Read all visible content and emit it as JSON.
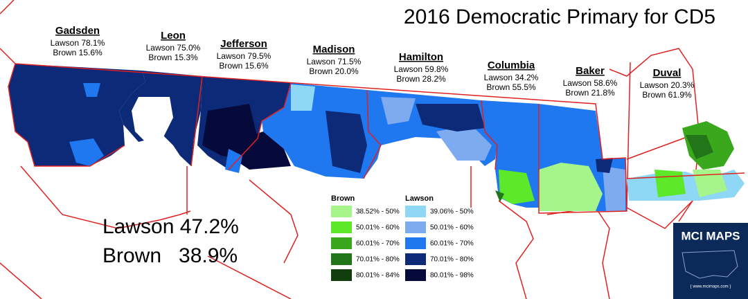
{
  "title": "2016 Democratic Primary for CD5",
  "counties": [
    {
      "name": "Gadsden",
      "lines": [
        "Lawson 78.1%",
        "Brown 15.6%"
      ]
    },
    {
      "name": "Leon",
      "lines": [
        "Lawson 75.0%",
        "Brown 15.3%"
      ]
    },
    {
      "name": "Jefferson",
      "lines": [
        "Lawson 79.5%",
        "Brown 15.6%"
      ]
    },
    {
      "name": "Madison",
      "lines": [
        "Lawson 71.5%",
        "Brown 20.0%"
      ]
    },
    {
      "name": "Hamilton",
      "lines": [
        "Lawson 59.8%",
        "Brown 28.2%"
      ]
    },
    {
      "name": "Columbia",
      "lines": [
        "Lawson 34.2%",
        "Brown 55.5%"
      ]
    },
    {
      "name": "Baker",
      "lines": [
        "Lawson 58.6%",
        "Brown 21.8%"
      ]
    },
    {
      "name": "Duval",
      "lines": [
        "Lawson 20.3%",
        "Brown 61.9%"
      ]
    }
  ],
  "legend": [
    {
      "title": "Brown",
      "items": [
        {
          "label": "38.52% - 50%",
          "color": "#a6f58a"
        },
        {
          "label": "50.01% - 60%",
          "color": "#5ee82a"
        },
        {
          "label": "60.01% - 70%",
          "color": "#3aa81c"
        },
        {
          "label": "70.01% - 80%",
          "color": "#23751a"
        },
        {
          "label": "80.01% - 84%",
          "color": "#123d0c"
        }
      ]
    },
    {
      "title": "Lawson",
      "items": [
        {
          "label": "39.06% - 50%",
          "color": "#8fd8f5"
        },
        {
          "label": "50.01% - 60%",
          "color": "#7eaaf0"
        },
        {
          "label": "60.01% - 70%",
          "color": "#1f78f0"
        },
        {
          "label": "70.01% - 80%",
          "color": "#0c2a78"
        },
        {
          "label": "80.01% - 98%",
          "color": "#050a3a"
        }
      ]
    }
  ],
  "totals": [
    "Lawson 47.2%",
    "Brown   38.9%"
  ],
  "logo": {
    "title": "MCI MAPS",
    "url": "{ www.mcimaps.com }"
  }
}
